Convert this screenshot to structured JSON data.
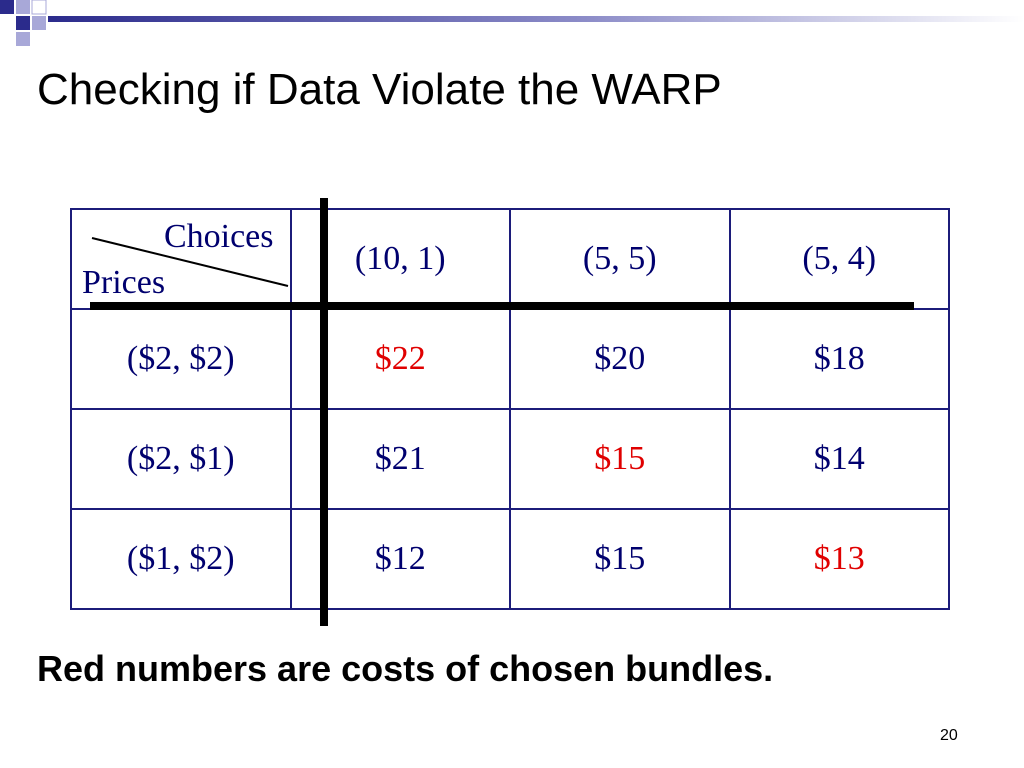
{
  "slide": {
    "title": "Checking if Data Violate the WARP",
    "caption": "Red numbers are costs of chosen bundles.",
    "page_number": "20"
  },
  "table": {
    "corner_choices_label": "Choices",
    "corner_prices_label": "Prices",
    "choice_headers": [
      "(10, 1)",
      "(5, 5)",
      "(5, 4)"
    ],
    "rows": [
      {
        "prices": "($2, $2)",
        "costs": [
          "$22",
          "$20",
          "$18"
        ],
        "chosen_index": 0
      },
      {
        "prices": "($2, $1)",
        "costs": [
          "$21",
          "$15",
          "$14"
        ],
        "chosen_index": 1
      },
      {
        "prices": "($1, $2)",
        "costs": [
          "$12",
          "$15",
          "$13"
        ],
        "chosen_index": 2
      }
    ]
  },
  "colors": {
    "table_text": "#00006e",
    "table_border": "#1c1c7a",
    "chosen_cost": "#e00000",
    "decoration_blue": "#2b2b8c",
    "decoration_light": "#a8a8d8"
  }
}
